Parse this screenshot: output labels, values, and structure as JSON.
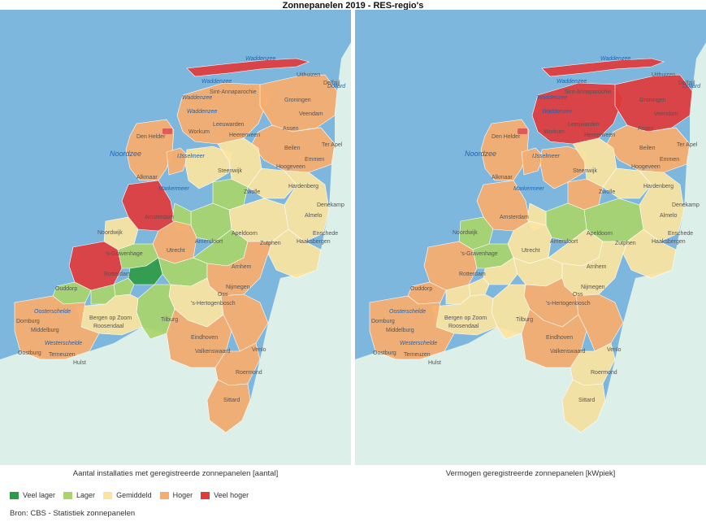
{
  "title": "Zonnepanelen 2019 - RES-regio's",
  "colors": {
    "water": "#7db7de",
    "land_abroad": "#dcefe8",
    "veel_lager": "#2e9a45",
    "lager": "#a8d46a",
    "gemiddeld": "#fce4a0",
    "hoger": "#f7ac6c",
    "veel_hoger": "#e03a3a"
  },
  "maps": [
    {
      "caption": "Aantal installaties met geregistreerde zonnepanelen [aantal]",
      "regions": {
        "waddeneilanden": "veel_hoger",
        "noord_holland_noord": "hoger",
        "west_friesland": "hoger",
        "friesland": "hoger",
        "groningen": "hoger",
        "drenthe": "hoger",
        "noord_holland_zuid": "veel_hoger",
        "flevoland": "gemiddeld",
        "noord_veluwe": "lager",
        "regio_zwolle": "gemiddeld",
        "west_overijssel": "gemiddeld",
        "twente": "gemiddeld",
        "cleantech_regio": "gemiddeld",
        "achterhoek": "gemiddeld",
        "food_valley": "lager",
        "regio_amersfoort": "lager",
        "u16": "hoger",
        "holland_rijnland": "gemiddeld",
        "rotterdam_den_haag": "veel_hoger",
        "midden_holland": "lager",
        "alblasserwaard": "veel_lager",
        "drechtsteden": "lager",
        "goeree_overflakkee": "lager",
        "hoeksche_waard": "lager",
        "foodvalley_zuid": "lager",
        "rivierenland": "lager",
        "arnhem_nijmegen": "hoger",
        "noord_oost_brabant": "gemiddeld",
        "hart_van_brabant": "lager",
        "west_brabant": "gemiddeld",
        "zeeland": "hoger",
        "metropoolregio_eindhoven": "hoger",
        "noord_limburg": "hoger",
        "midden_limburg": "hoger",
        "zuid_limburg": "hoger"
      }
    },
    {
      "caption": "Vermogen geregistreerde zonnepanelen [kWpiek]",
      "regions": {
        "waddeneilanden": "veel_hoger",
        "noord_holland_noord": "hoger",
        "west_friesland": "hoger",
        "friesland": "veel_hoger",
        "groningen": "veel_hoger",
        "drenthe": "hoger",
        "noord_holland_zuid": "hoger",
        "flevoland": "hoger",
        "noord_veluwe": "hoger",
        "regio_zwolle": "gemiddeld",
        "west_overijssel": "gemiddeld",
        "twente": "gemiddeld",
        "cleantech_regio": "lager",
        "achterhoek": "gemiddeld",
        "food_valley": "lager",
        "regio_amersfoort": "gemiddeld",
        "u16": "gemiddeld",
        "holland_rijnland": "lager",
        "rotterdam_den_haag": "hoger",
        "midden_holland": "lager",
        "alblasserwaard": "gemiddeld",
        "drechtsteden": "gemiddeld",
        "goeree_overflakkee": "hoger",
        "hoeksche_waard": "gemiddeld",
        "foodvalley_zuid": "gemiddeld",
        "rivierenland": "gemiddeld",
        "arnhem_nijmegen": "gemiddeld",
        "noord_oost_brabant": "hoger",
        "hart_van_brabant": "gemiddeld",
        "west_brabant": "gemiddeld",
        "zeeland": "hoger",
        "metropoolregio_eindhoven": "hoger",
        "noord_limburg": "hoger",
        "midden_limburg": "gemiddeld",
        "zuid_limburg": "gemiddeld"
      }
    }
  ],
  "place_labels": {
    "wadden1": "Waddenzee",
    "wadden2": "Waddenzee",
    "wadden3": "Waddenzee",
    "wadden4": "Waddenzee",
    "noordzee": "Noordzee",
    "ijsselmeer": "IJsselmeer",
    "markermeer": "Markermeer",
    "dollard": "Dollard",
    "oosterschelde": "Oosterschelde",
    "westerschelde": "Westerschelde",
    "sint_annaparochie": "Sint-Annaparochie",
    "den_helder": "Den Helder",
    "leeuwarden": "Leeuwarden",
    "groningen": "Groningen",
    "veendam": "Veendam",
    "assen": "Assen",
    "heerenveen": "Heerenveen",
    "workum": "Workum",
    "emmen": "Emmen",
    "hoogeveen": "Hoogeveen",
    "beilen": "Beilen",
    "alkmaar": "Alkmaar",
    "hardenberg": "Hardenberg",
    "zwolle": "Zwolle",
    "amsterdam": "Amsterdam",
    "almelo": "Almelo",
    "denekamp": "Denekamp",
    "apeldoorn": "Apeldoorn",
    "enschede": "Enschede",
    "haaksbergen": "Haaksbergen",
    "amersfoort": "Amersfoort",
    "zutphen": "Zutphen",
    "s_gravenhage": "'s-Gravenhage",
    "utrecht": "Utrecht",
    "rotterdam": "Rotterdam",
    "arnhem": "Arnhem",
    "nijmegen": "Nijmegen",
    "s_hertogenbosch": "'s-Hertogenbosch",
    "oss": "Oss",
    "tilburg": "Tilburg",
    "bergen_op_zoom": "Bergen op Zoom",
    "roosendaal": "Roosendaal",
    "eindhoven": "Eindhoven",
    "venlo": "Venlo",
    "valkenswaard": "Valkenswaard",
    "roermond": "Roermond",
    "sittard": "Sittard",
    "terneuzen": "Terneuzen",
    "middelburg": "Middelburg",
    "domburg": "Domburg",
    "oostburg": "Oostburg",
    "hulst": "Hulst",
    "ouddorp": "Ouddorp",
    "noordwijk": "Noordwijk",
    "steenwijk": "Steenwijk",
    "ter_apel": "Ter Apel",
    "uithuizen": "Uithuizen",
    "delfzijl": "Delfzijl"
  },
  "legend": [
    {
      "key": "veel_lager",
      "label": "Veel lager"
    },
    {
      "key": "lager",
      "label": "Lager"
    },
    {
      "key": "gemiddeld",
      "label": "Gemiddeld"
    },
    {
      "key": "hoger",
      "label": "Hoger"
    },
    {
      "key": "veel_hoger",
      "label": "Veel hoger"
    }
  ],
  "source": "Bron: CBS - Statistiek zonnepanelen"
}
